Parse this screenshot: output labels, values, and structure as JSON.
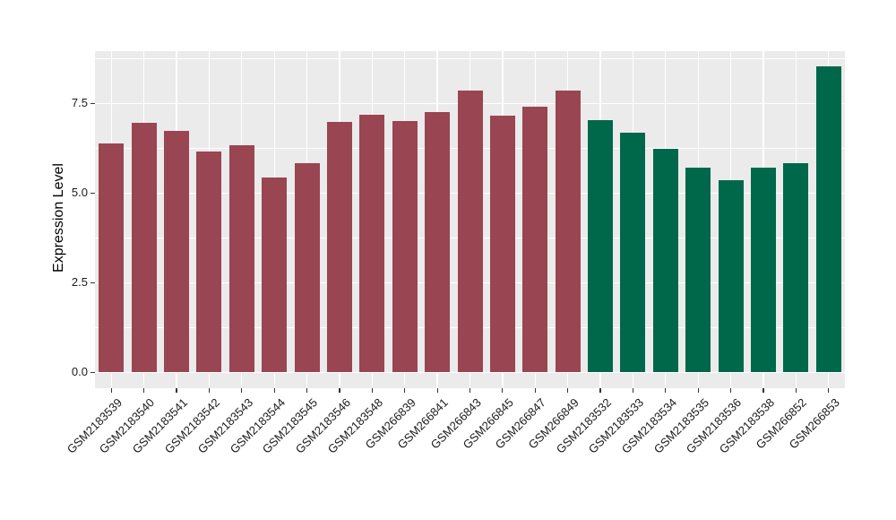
{
  "chart_data": {
    "type": "bar",
    "title": "",
    "xlabel": "",
    "ylabel": "Expression Level",
    "categories": [
      "GSM2183539",
      "GSM2183540",
      "GSM2183541",
      "GSM2183542",
      "GSM2183543",
      "GSM2183544",
      "GSM2183545",
      "GSM2183546",
      "GSM2183548",
      "GSM266839",
      "GSM266841",
      "GSM266843",
      "GSM266845",
      "GSM266847",
      "GSM266849",
      "GSM2183532",
      "GSM2183533",
      "GSM2183534",
      "GSM2183535",
      "GSM2183536",
      "GSM2183538",
      "GSM266852",
      "GSM266853"
    ],
    "series": [
      {
        "name": "Expression Level",
        "values": [
          6.39,
          6.97,
          6.74,
          6.17,
          6.34,
          5.44,
          5.83,
          6.98,
          7.19,
          7.02,
          7.27,
          7.87,
          7.17,
          7.42,
          7.87,
          7.04,
          6.69,
          6.24,
          5.72,
          5.35,
          5.7,
          5.84,
          8.54
        ]
      }
    ],
    "bar_groups": [
      "group1",
      "group1",
      "group1",
      "group1",
      "group1",
      "group1",
      "group1",
      "group1",
      "group1",
      "group1",
      "group1",
      "group1",
      "group1",
      "group1",
      "group1",
      "group2",
      "group2",
      "group2",
      "group2",
      "group2",
      "group2",
      "group2",
      "group2"
    ],
    "group_colors": {
      "group1": "#9A4552",
      "group2": "#00684A"
    },
    "ylim": [
      -0.44,
      8.96
    ],
    "yticks": [
      0,
      2.5,
      5,
      7.5
    ],
    "ytick_labels": [
      "0.0",
      "2.5",
      "5.0",
      "7.5"
    ],
    "yticks_minor": [
      1.25,
      3.75,
      6.25,
      8.75
    ],
    "grid": true,
    "legend_position": "none",
    "colors": {
      "panel_background": "#EBEBEB",
      "grid": "#FFFFFF",
      "tick_mark": "#333333",
      "tick_text": "#1A1A1A",
      "axis_title_text": "#000000",
      "figure_background": "#FFFFFF"
    }
  }
}
